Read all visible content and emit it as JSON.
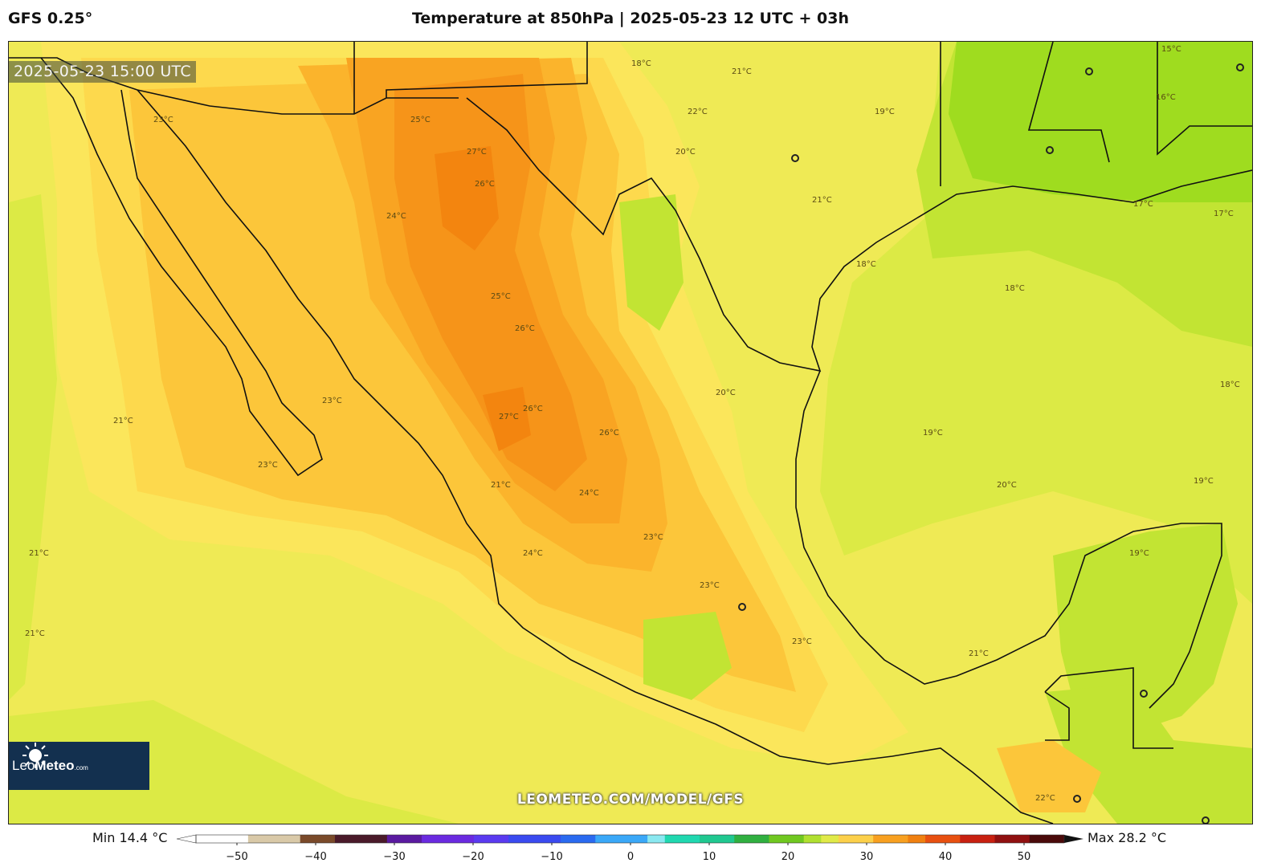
{
  "header": {
    "model": "GFS 0.25°",
    "title": "Temperature at 850hPa | 2025-05-23 12 UTC + 03h"
  },
  "map": {
    "valid_time": "2025-05-23 15:00 UTC",
    "watermark": "LEOMETEO.COM/MODEL/GFS",
    "contour_labels": [
      "15°C",
      "16°C",
      "17°C",
      "18°C",
      "19°C",
      "20°C",
      "21°C",
      "22°C",
      "23°C",
      "24°C",
      "25°C",
      "26°C",
      "27°C"
    ],
    "colors": {
      "c17": "#9fdc1f",
      "c18": "#c2e433",
      "c19": "#dcea45",
      "c20": "#efea55",
      "c21": "#fbe65b",
      "c22": "#fdd94d",
      "c23": "#fcc63a",
      "c24": "#fbb42c",
      "c25": "#f9a422",
      "c26": "#f69419",
      "c27": "#f3850f"
    }
  },
  "logo": {
    "brand_light": "Leo",
    "brand_bold": "Meteo",
    "domain": ".com"
  },
  "legend": {
    "min": "Min 14.4 °C",
    "max": "Max 28.2 °C",
    "ticks": [
      "−50",
      "−40",
      "−30",
      "−20",
      "−10",
      "0",
      "10",
      "20",
      "30",
      "40",
      "50"
    ]
  }
}
